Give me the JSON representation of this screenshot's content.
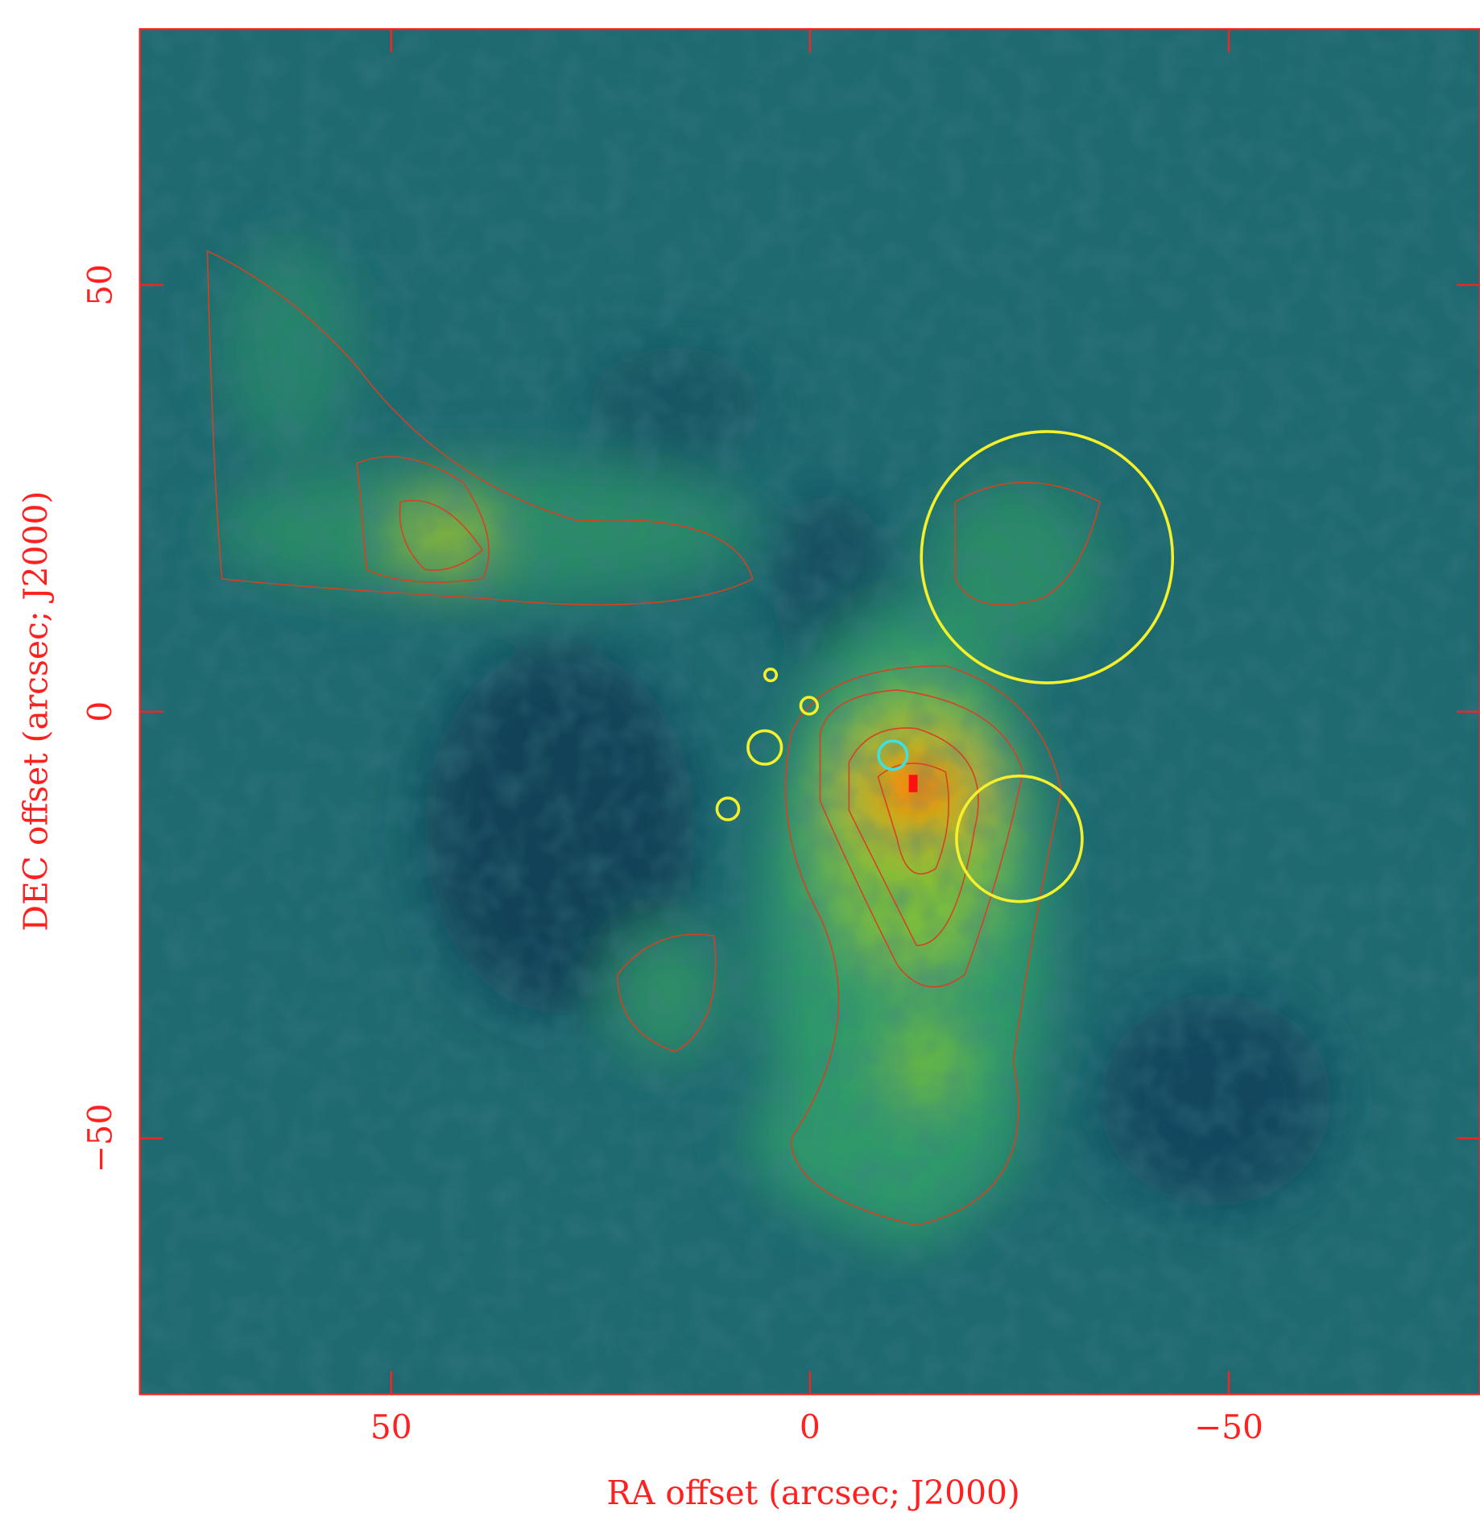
{
  "chart_data": {
    "type": "image",
    "xlabel": "RA offset (arcsec; J2000)",
    "ylabel": "DEC offset (arcsec; J2000)",
    "xlim": [
      80,
      -80
    ],
    "ylim": [
      -80,
      80
    ],
    "xticks": [
      50,
      0,
      {
        "value": -50,
        "label": "−50"
      }
    ],
    "yticks": [
      50,
      0,
      {
        "value": -50,
        "label": "−50"
      }
    ],
    "axis_color": "#ff2020",
    "circles": [
      {
        "x": -28.3,
        "y": 18.1,
        "r": 15,
        "color": "#f4f02a"
      },
      {
        "x": -25,
        "y": -14.9,
        "r": 7.5,
        "color": "#f4f02a"
      },
      {
        "x": 5.4,
        "y": -4.2,
        "r": 2,
        "color": "#f4f02a"
      },
      {
        "x": 9.8,
        "y": -11.4,
        "r": 1.3,
        "color": "#f4f02a"
      },
      {
        "x": 0.1,
        "y": 0.7,
        "r": 1,
        "color": "#f4f02a"
      },
      {
        "x": 4.7,
        "y": 4.3,
        "r": 0.7,
        "color": "#f4f02a"
      },
      {
        "x": -9.9,
        "y": -5.1,
        "r": 1.7,
        "color": "#3fe0e0"
      }
    ]
  }
}
